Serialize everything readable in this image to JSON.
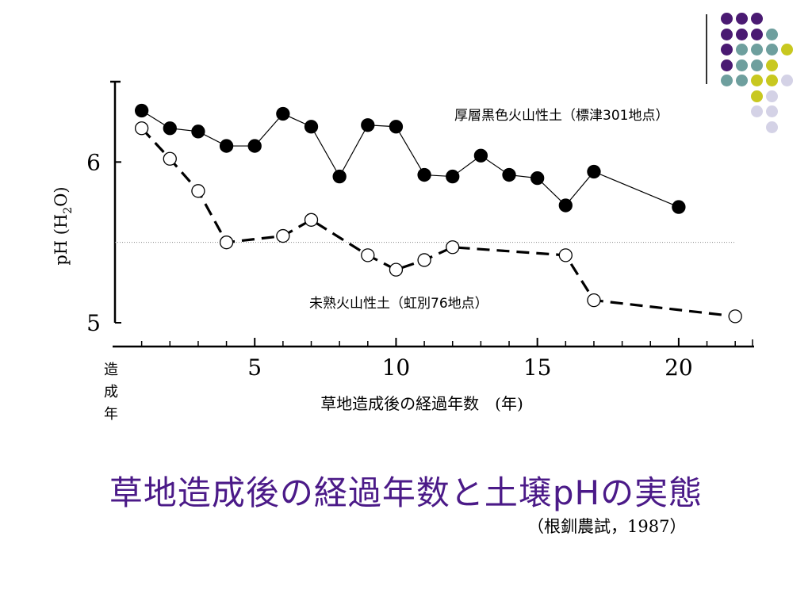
{
  "slide": {
    "title": "草地造成後の経過年数と土壌pHの実態",
    "source": "（根釧農試，1987）",
    "decoration_colors": {
      "purple": "#4a1a72",
      "teal": "#6e9f9e",
      "olive": "#c8c820",
      "lavender": "#d4d2e6"
    }
  },
  "chart_data": {
    "type": "line",
    "x_axis": {
      "label": "草地造成後の経過年数　(年)",
      "side_label": [
        "造",
        "成",
        "年"
      ],
      "range": [
        0,
        22.5
      ],
      "ticks": [
        5,
        10,
        15,
        20
      ],
      "tick_labels": [
        "5",
        "10",
        "15",
        "20"
      ],
      "minor_tick_step": 1
    },
    "y_axis": {
      "label_pre": "pH (H",
      "label_sub": "2",
      "label_post": "O)",
      "range": [
        5.0,
        6.5
      ],
      "ticks": [
        5,
        6
      ],
      "tick_labels": [
        "5",
        "6"
      ],
      "reference_line": 5.5
    },
    "series": [
      {
        "name": "厚層黒色火山性土（標津301地点）",
        "marker": "filled",
        "line": "solid",
        "x": [
          1,
          2,
          3,
          4,
          5,
          6,
          7,
          8,
          9,
          10,
          11,
          12,
          13,
          14,
          15,
          16,
          17,
          20
        ],
        "y": [
          6.32,
          6.21,
          6.19,
          6.1,
          6.1,
          6.3,
          6.22,
          5.91,
          6.23,
          6.22,
          5.92,
          5.91,
          6.04,
          5.92,
          5.9,
          5.73,
          5.94,
          5.72
        ]
      },
      {
        "name": "未熟火山性土（虹別76地点）",
        "marker": "open",
        "line": "dashed",
        "x": [
          1,
          2,
          3,
          4,
          6,
          7,
          9,
          10,
          11,
          12,
          16,
          17,
          22
        ],
        "y": [
          6.21,
          6.02,
          5.82,
          5.5,
          5.54,
          5.64,
          5.42,
          5.33,
          5.39,
          5.47,
          5.42,
          5.14,
          5.04
        ]
      }
    ]
  }
}
